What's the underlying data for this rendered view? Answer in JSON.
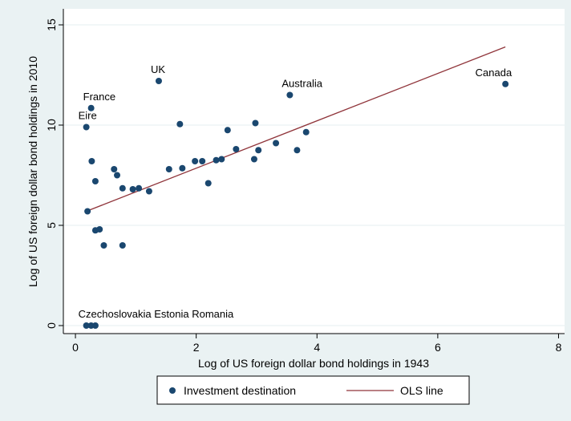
{
  "chart_data": {
    "type": "scatter",
    "xlabel": "Log of US foreign dollar bond holdings in 1943",
    "ylabel": "Log of US foreign dollar bond holdings in 2010",
    "xlim": [
      -0.2,
      8.1
    ],
    "ylim": [
      -0.4,
      15.8
    ],
    "x_ticks": [
      0,
      2,
      4,
      6,
      8
    ],
    "y_ticks": [
      0,
      5,
      10,
      15
    ],
    "grid": "horizontal",
    "legend_position": "bottom",
    "series": [
      {
        "name": "Investment destination",
        "color": "#1a476f",
        "points": [
          {
            "x": 0.18,
            "y": 0.0
          },
          {
            "x": 0.26,
            "y": 0.0
          },
          {
            "x": 0.33,
            "y": 0.0
          },
          {
            "x": 0.18,
            "y": 9.9
          },
          {
            "x": 0.26,
            "y": 10.85
          },
          {
            "x": 0.2,
            "y": 5.7
          },
          {
            "x": 0.27,
            "y": 8.2
          },
          {
            "x": 0.33,
            "y": 7.2
          },
          {
            "x": 0.33,
            "y": 4.75
          },
          {
            "x": 0.4,
            "y": 4.8
          },
          {
            "x": 0.47,
            "y": 4.0
          },
          {
            "x": 0.64,
            "y": 7.8
          },
          {
            "x": 0.69,
            "y": 7.5
          },
          {
            "x": 0.78,
            "y": 6.85
          },
          {
            "x": 0.78,
            "y": 4.0
          },
          {
            "x": 0.95,
            "y": 6.8
          },
          {
            "x": 1.05,
            "y": 6.85
          },
          {
            "x": 1.22,
            "y": 6.7
          },
          {
            "x": 1.38,
            "y": 12.2
          },
          {
            "x": 1.55,
            "y": 7.8
          },
          {
            "x": 1.73,
            "y": 10.05
          },
          {
            "x": 1.77,
            "y": 7.85
          },
          {
            "x": 1.98,
            "y": 8.2
          },
          {
            "x": 2.1,
            "y": 8.2
          },
          {
            "x": 2.2,
            "y": 7.1
          },
          {
            "x": 2.33,
            "y": 8.25
          },
          {
            "x": 2.42,
            "y": 8.3
          },
          {
            "x": 2.52,
            "y": 9.75
          },
          {
            "x": 2.66,
            "y": 8.8
          },
          {
            "x": 2.96,
            "y": 8.3
          },
          {
            "x": 2.98,
            "y": 10.1
          },
          {
            "x": 3.03,
            "y": 8.75
          },
          {
            "x": 3.32,
            "y": 9.1
          },
          {
            "x": 3.55,
            "y": 11.5
          },
          {
            "x": 3.67,
            "y": 8.75
          },
          {
            "x": 3.82,
            "y": 9.65
          },
          {
            "x": 7.12,
            "y": 12.05
          }
        ]
      },
      {
        "name": "OLS line",
        "color": "#90353b",
        "line": [
          {
            "x": 0.18,
            "y": 5.7
          },
          {
            "x": 7.12,
            "y": 13.9
          }
        ]
      }
    ],
    "annotations": [
      {
        "text": "UK",
        "x": 1.38,
        "y": 12.2
      },
      {
        "text": "France",
        "x": 0.26,
        "y": 10.85
      },
      {
        "text": "Eire",
        "x": 0.18,
        "y": 9.9
      },
      {
        "text": "Australia",
        "x": 3.55,
        "y": 11.5
      },
      {
        "text": "Canada",
        "x": 7.12,
        "y": 12.05
      },
      {
        "text": "Czechoslovakia Estonia Romania",
        "x": 0.18,
        "y": 0.0
      }
    ]
  }
}
